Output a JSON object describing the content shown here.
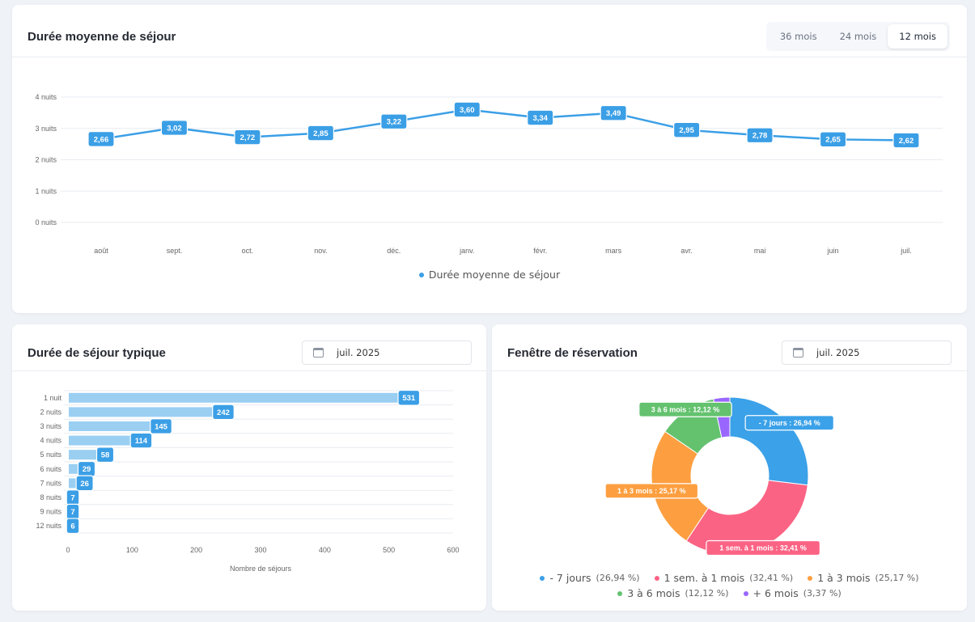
{
  "avg_card": {
    "title": "Durée moyenne de séjour",
    "period_options": [
      {
        "label": "36 mois",
        "active": false
      },
      {
        "label": "24 mois",
        "active": false
      },
      {
        "label": "12 mois",
        "active": true
      }
    ]
  },
  "typical_card": {
    "title": "Durée de séjour typique",
    "date_value": "juil. 2025"
  },
  "window_card": {
    "title": "Fenêtre de réservation",
    "date_value": "juil. 2025"
  },
  "colors": {
    "primary": "#3b9fe6",
    "bar_fill": "#9acff2",
    "grid": "#e8ebf0",
    "axis_text": "#666666"
  },
  "chart_data": [
    {
      "type": "line",
      "title": "Durée moyenne de séjour",
      "categories": [
        "août",
        "sept.",
        "oct.",
        "nov.",
        "déc.",
        "janv.",
        "févr.",
        "mars",
        "avr.",
        "mai",
        "juin",
        "juil."
      ],
      "series": [
        {
          "name": "Durée moyenne de séjour",
          "values": [
            2.66,
            3.02,
            2.72,
            2.85,
            3.22,
            3.6,
            3.34,
            3.49,
            2.95,
            2.78,
            2.65,
            2.62
          ],
          "labels": [
            "2,66",
            "3,02",
            "2,72",
            "2,85",
            "3,22",
            "3,60",
            "3,34",
            "3,49",
            "2,95",
            "2,78",
            "2,65",
            "2,62"
          ],
          "color": "#3b9fe6"
        }
      ],
      "yticks": [
        "0 nuits",
        "1 nuits",
        "2 nuits",
        "3 nuits",
        "4 nuits"
      ],
      "ylim": [
        0,
        4
      ],
      "xlabel": "",
      "ylabel": "",
      "grid": true,
      "legend": "bottom-center"
    },
    {
      "type": "bar",
      "orientation": "horizontal",
      "title": "Durée de séjour typique",
      "categories": [
        "1 nuit",
        "2 nuits",
        "3 nuits",
        "4 nuits",
        "5 nuits",
        "6 nuits",
        "7 nuits",
        "8 nuits",
        "9 nuits",
        "12 nuits"
      ],
      "values": [
        531,
        242,
        145,
        114,
        58,
        29,
        26,
        7,
        7,
        6
      ],
      "xticks": [
        "0",
        "100",
        "200",
        "300",
        "400",
        "500",
        "600"
      ],
      "xlim": [
        0,
        600
      ],
      "xlabel": "Nombre de séjours",
      "ylabel": "",
      "grid": true
    },
    {
      "type": "pie",
      "variant": "donut",
      "title": "Fenêtre de réservation",
      "slices": [
        {
          "name": "- 7 jours",
          "value": 26.94,
          "pct_label": "26,94 %",
          "color": "#3ba1e8"
        },
        {
          "name": "1 sem. à 1 mois",
          "value": 32.41,
          "pct_label": "32,41 %",
          "color": "#fb6384"
        },
        {
          "name": "1 à 3 mois",
          "value": 25.17,
          "pct_label": "25,17 %",
          "color": "#fd9f40"
        },
        {
          "name": "3 à 6 mois",
          "value": 12.12,
          "pct_label": "12,12 %",
          "color": "#64c26f"
        },
        {
          "name": "+ 6 mois",
          "value": 3.37,
          "pct_label": "3,37 %",
          "color": "#9966ff"
        }
      ],
      "slice_labels": [
        "- 7 jours : 26,94 %",
        "1 sem. à 1 mois : 32,41 %",
        "1 à 3 mois : 25,17 %",
        "3 à 6 mois : 12,12 %"
      ],
      "legend": "bottom-center"
    }
  ]
}
